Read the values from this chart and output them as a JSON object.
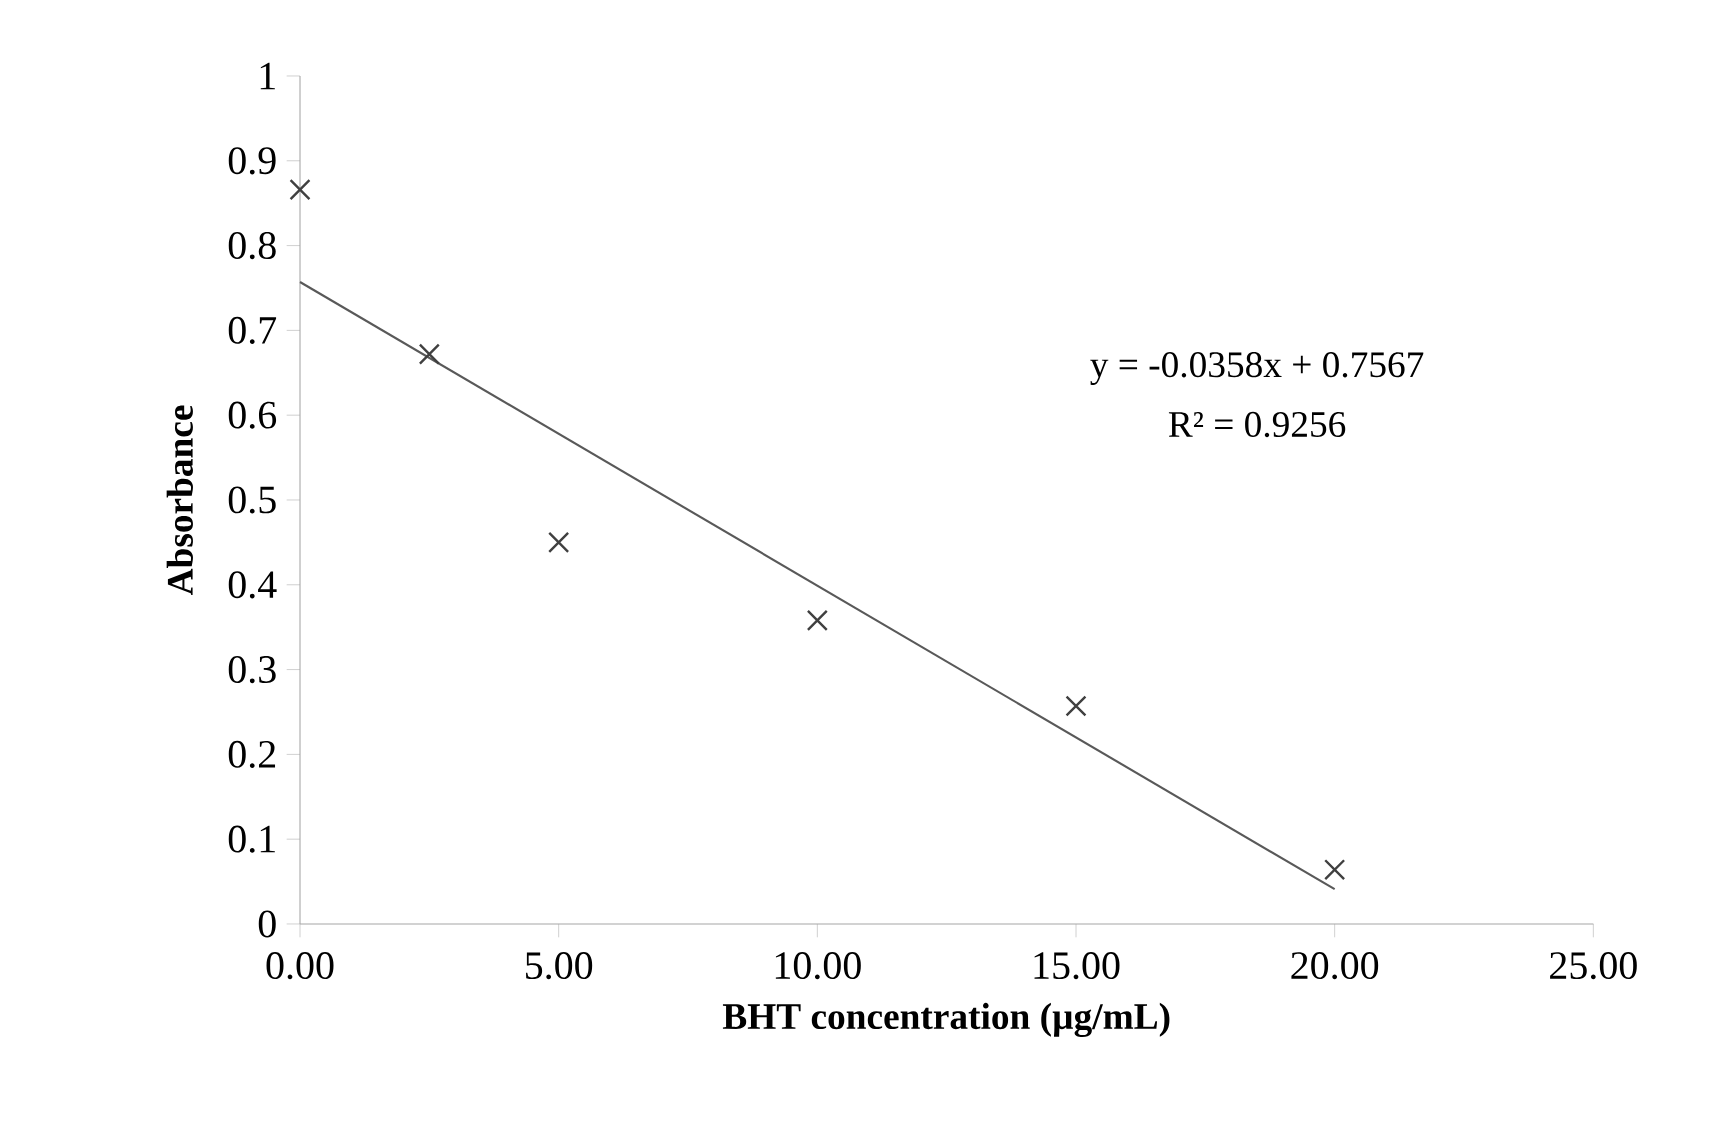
{
  "chart_data": {
    "type": "scatter",
    "xlabel": "BHT concentration (µg/mL)",
    "ylabel": "Absorbance",
    "xlim": [
      0,
      25
    ],
    "ylim": [
      0,
      1
    ],
    "xticks": [
      {
        "value": 0,
        "label": "0.00"
      },
      {
        "value": 5,
        "label": "5.00"
      },
      {
        "value": 10,
        "label": "10.00"
      },
      {
        "value": 15,
        "label": "15.00"
      },
      {
        "value": 20,
        "label": "20.00"
      },
      {
        "value": 25,
        "label": "25.00"
      }
    ],
    "yticks": [
      0,
      0.1,
      0.2,
      0.3,
      0.4,
      0.5,
      0.6,
      0.7,
      0.8,
      0.9,
      1
    ],
    "series": [
      {
        "marker": "cross",
        "color": "#404040",
        "x": [
          0,
          2.5,
          5,
          10,
          15,
          20
        ],
        "values": [
          0.866,
          0.672,
          0.45,
          0.358,
          0.257,
          0.064
        ]
      },
      {
        "type": "line",
        "marker": "none",
        "line_style": "solid",
        "color": "#595959",
        "x": [
          0,
          20
        ],
        "values": [
          0.757,
          0.041
        ]
      }
    ],
    "annotations": [
      "y = -0.0358x  + 0.7567",
      "R² = 0.9256"
    ],
    "grid": false
  }
}
